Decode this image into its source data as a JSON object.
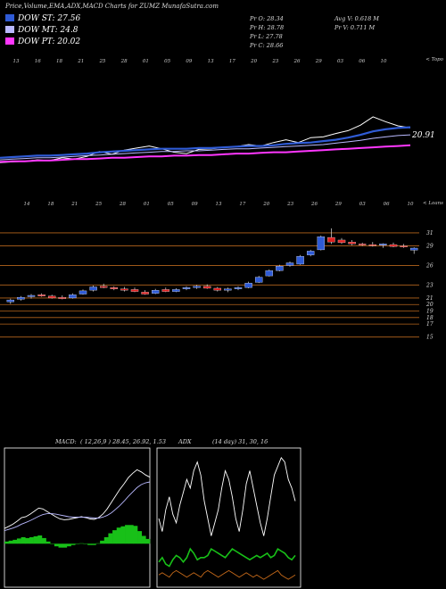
{
  "header": {
    "title": "Price,Volume,EMA,ADX,MACD Charts for ZUMZ MunafaSutra.com"
  },
  "legend": [
    {
      "label": "DOW ST: 27.56",
      "color": "#2f5bd6"
    },
    {
      "label": "DOW MT: 24.8",
      "color": "#b9b9ff"
    },
    {
      "label": "DOW PT: 20.02",
      "color": "#ff37ff"
    }
  ],
  "stats": {
    "pr_o": "Pr   O: 28.34",
    "pr_h": "Pr   H: 28.78",
    "pr_l": "Pr   L: 27.78",
    "pr_c": "Pr   C: 28.66",
    "avg_v": "Avg V: 0.618 M",
    "pr_v": "Pr   V: 0.711 M"
  },
  "colors": {
    "bull": "#2f5bd6",
    "bear": "#e02020",
    "grid": "#b5651d",
    "macd_fill": "#18c018",
    "adx_green": "#18c018",
    "adx_orange": "#c66a1a"
  },
  "chart_data": [
    {
      "type": "line",
      "name": "ema-panel",
      "date_labels_top": [
        "13",
        "16",
        "18",
        "21",
        "25",
        "28",
        "01",
        "05",
        "09",
        "13",
        "17",
        "20",
        "23",
        "26",
        "29",
        "03",
        "06",
        "10"
      ],
      "annotation": "20.91",
      "corner_label": "< Topo",
      "series": [
        {
          "color": "#ffffff",
          "values": [
            18.0,
            18.1,
            18.2,
            18.4,
            18.3,
            18.7,
            18.5,
            18.9,
            19.6,
            19.2,
            19.8,
            20.1,
            20.4,
            20.0,
            19.5,
            19.3,
            19.9,
            20.0,
            20.2,
            20.3,
            20.6,
            20.4,
            20.9,
            21.3,
            20.9,
            21.6,
            21.7,
            22.2,
            22.6,
            23.4,
            24.6,
            23.9,
            23.3,
            23.0
          ]
        },
        {
          "color": "#2f5bd6",
          "values": [
            18.7,
            18.8,
            18.9,
            19.0,
            19.0,
            19.1,
            19.2,
            19.3,
            19.5,
            19.6,
            19.7,
            19.8,
            19.9,
            20.0,
            20.0,
            20.0,
            20.1,
            20.1,
            20.2,
            20.3,
            20.4,
            20.4,
            20.5,
            20.7,
            20.8,
            20.9,
            21.1,
            21.3,
            21.6,
            22.0,
            22.5,
            22.8,
            23.0,
            23.1
          ]
        },
        {
          "color": "#b9b9ff",
          "values": [
            18.4,
            18.5,
            18.6,
            18.7,
            18.7,
            18.8,
            18.9,
            19.0,
            19.1,
            19.2,
            19.3,
            19.4,
            19.5,
            19.6,
            19.6,
            19.7,
            19.7,
            19.8,
            19.9,
            20.0,
            20.0,
            20.1,
            20.2,
            20.3,
            20.4,
            20.5,
            20.6,
            20.8,
            21.0,
            21.2,
            21.5,
            21.7,
            21.9,
            22.0
          ]
        },
        {
          "color": "#ff37ff",
          "values": [
            18.1,
            18.2,
            18.2,
            18.3,
            18.3,
            18.4,
            18.5,
            18.5,
            18.6,
            18.7,
            18.7,
            18.8,
            18.9,
            18.9,
            19.0,
            19.0,
            19.1,
            19.1,
            19.2,
            19.3,
            19.3,
            19.4,
            19.5,
            19.5,
            19.6,
            19.7,
            19.8,
            19.9,
            20.0,
            20.1,
            20.2,
            20.3,
            20.4,
            20.5
          ]
        }
      ],
      "ylim": [
        17,
        26
      ]
    },
    {
      "type": "candlestick",
      "name": "price-panel",
      "date_labels": [
        "14",
        "18",
        "21",
        "25",
        "28",
        "01",
        "05",
        "09",
        "13",
        "17",
        "20",
        "23",
        "26",
        "29",
        "03",
        "06",
        "10"
      ],
      "corner_label": "< Loans",
      "price_levels": [
        31,
        29,
        26,
        23,
        21,
        20,
        19,
        18,
        17,
        15
      ],
      "ylim": [
        14,
        32.5
      ],
      "candles": [
        {
          "o": 20.4,
          "h": 20.9,
          "l": 20.1,
          "c": 20.7
        },
        {
          "o": 20.8,
          "h": 21.3,
          "l": 20.6,
          "c": 21.1
        },
        {
          "o": 21.2,
          "h": 21.6,
          "l": 20.9,
          "c": 21.4
        },
        {
          "o": 21.5,
          "h": 21.7,
          "l": 21.2,
          "c": 21.3
        },
        {
          "o": 21.3,
          "h": 21.5,
          "l": 20.9,
          "c": 21.0
        },
        {
          "o": 21.1,
          "h": 21.4,
          "l": 20.8,
          "c": 20.9
        },
        {
          "o": 21.0,
          "h": 21.7,
          "l": 20.9,
          "c": 21.5
        },
        {
          "o": 21.6,
          "h": 22.3,
          "l": 21.5,
          "c": 22.1
        },
        {
          "o": 22.2,
          "h": 22.9,
          "l": 22.0,
          "c": 22.7
        },
        {
          "o": 22.8,
          "h": 23.2,
          "l": 22.5,
          "c": 22.6
        },
        {
          "o": 22.6,
          "h": 22.8,
          "l": 22.2,
          "c": 22.4
        },
        {
          "o": 22.4,
          "h": 22.7,
          "l": 22.0,
          "c": 22.2
        },
        {
          "o": 22.3,
          "h": 22.6,
          "l": 21.9,
          "c": 22.0
        },
        {
          "o": 21.9,
          "h": 22.2,
          "l": 21.5,
          "c": 21.6
        },
        {
          "o": 21.7,
          "h": 22.4,
          "l": 21.6,
          "c": 22.2
        },
        {
          "o": 22.3,
          "h": 22.6,
          "l": 21.9,
          "c": 22.0
        },
        {
          "o": 22.0,
          "h": 22.5,
          "l": 21.9,
          "c": 22.3
        },
        {
          "o": 22.4,
          "h": 22.8,
          "l": 22.2,
          "c": 22.6
        },
        {
          "o": 22.6,
          "h": 23.0,
          "l": 22.4,
          "c": 22.8
        },
        {
          "o": 22.8,
          "h": 23.1,
          "l": 22.4,
          "c": 22.5
        },
        {
          "o": 22.5,
          "h": 22.7,
          "l": 22.0,
          "c": 22.2
        },
        {
          "o": 22.2,
          "h": 22.6,
          "l": 21.9,
          "c": 22.4
        },
        {
          "o": 22.4,
          "h": 22.8,
          "l": 22.2,
          "c": 22.6
        },
        {
          "o": 22.6,
          "h": 23.5,
          "l": 22.5,
          "c": 23.3
        },
        {
          "o": 23.4,
          "h": 24.4,
          "l": 23.3,
          "c": 24.2
        },
        {
          "o": 24.4,
          "h": 25.4,
          "l": 24.3,
          "c": 25.2
        },
        {
          "o": 25.2,
          "h": 26.1,
          "l": 25.1,
          "c": 25.9
        },
        {
          "o": 26.0,
          "h": 26.6,
          "l": 25.8,
          "c": 26.4
        },
        {
          "o": 26.2,
          "h": 27.6,
          "l": 26.1,
          "c": 27.4
        },
        {
          "o": 27.6,
          "h": 28.4,
          "l": 27.4,
          "c": 28.2
        },
        {
          "o": 28.4,
          "h": 30.6,
          "l": 28.3,
          "c": 30.4
        },
        {
          "o": 30.3,
          "h": 31.7,
          "l": 29.3,
          "c": 29.6
        },
        {
          "o": 29.9,
          "h": 30.2,
          "l": 29.3,
          "c": 29.5
        },
        {
          "o": 29.6,
          "h": 29.9,
          "l": 29.1,
          "c": 29.3
        },
        {
          "o": 29.3,
          "h": 29.5,
          "l": 29.0,
          "c": 29.2
        },
        {
          "o": 29.2,
          "h": 29.6,
          "l": 28.9,
          "c": 29.1
        },
        {
          "o": 29.1,
          "h": 29.4,
          "l": 28.7,
          "c": 29.3
        },
        {
          "o": 29.2,
          "h": 29.5,
          "l": 28.8,
          "c": 28.9
        },
        {
          "o": 29.0,
          "h": 29.3,
          "l": 28.7,
          "c": 28.9
        },
        {
          "o": 28.34,
          "h": 28.78,
          "l": 27.78,
          "c": 28.66
        }
      ]
    },
    {
      "type": "area",
      "name": "macd-panel",
      "label": "MACD:",
      "params": "( 12,26,9 ) 28.45, 26.92, 1.53",
      "ylim": [
        -1,
        2.2
      ],
      "series": [
        {
          "name": "macd",
          "color": "#ffffff",
          "values": [
            0.35,
            0.4,
            0.45,
            0.52,
            0.6,
            0.62,
            0.68,
            0.75,
            0.82,
            0.8,
            0.74,
            0.68,
            0.62,
            0.57,
            0.55,
            0.56,
            0.58,
            0.6,
            0.62,
            0.6,
            0.57,
            0.56,
            0.6,
            0.68,
            0.8,
            0.95,
            1.1,
            1.25,
            1.38,
            1.52,
            1.62,
            1.7,
            1.65,
            1.58,
            1.53
          ]
        },
        {
          "name": "signal",
          "color": "#b9b9ff",
          "values": [
            0.3,
            0.33,
            0.36,
            0.4,
            0.45,
            0.49,
            0.53,
            0.58,
            0.63,
            0.67,
            0.69,
            0.69,
            0.68,
            0.66,
            0.64,
            0.62,
            0.61,
            0.61,
            0.61,
            0.61,
            0.6,
            0.59,
            0.59,
            0.61,
            0.65,
            0.71,
            0.79,
            0.88,
            0.98,
            1.09,
            1.19,
            1.29,
            1.36,
            1.4,
            1.42
          ]
        },
        {
          "name": "histogram",
          "color": "#18c018",
          "values": [
            0.05,
            0.07,
            0.09,
            0.12,
            0.15,
            0.13,
            0.15,
            0.17,
            0.19,
            0.13,
            0.05,
            -0.01,
            -0.06,
            -0.09,
            -0.09,
            -0.06,
            -0.03,
            -0.01,
            0.01,
            -0.01,
            -0.03,
            -0.03,
            0.01,
            0.07,
            0.15,
            0.24,
            0.31,
            0.37,
            0.4,
            0.43,
            0.43,
            0.41,
            0.29,
            0.18,
            0.11
          ]
        }
      ]
    },
    {
      "type": "line",
      "name": "adx-panel",
      "label": "ADX",
      "params": "(14 day) 31, 30, 16",
      "ylim": [
        0,
        60
      ],
      "series": [
        {
          "name": "dx",
          "color": "#ffffff",
          "values": [
            30,
            24,
            34,
            40,
            32,
            28,
            36,
            42,
            48,
            44,
            52,
            56,
            50,
            38,
            30,
            22,
            28,
            34,
            44,
            52,
            48,
            40,
            30,
            24,
            34,
            46,
            52,
            44,
            36,
            28,
            22,
            30,
            40,
            50,
            54,
            58,
            56,
            48,
            44,
            38
          ]
        },
        {
          "name": "plus-di",
          "color": "#18c018",
          "values": [
            10,
            12,
            9,
            8,
            11,
            13,
            12,
            10,
            12,
            16,
            14,
            11,
            12,
            12,
            13,
            16,
            15,
            14,
            13,
            12,
            14,
            16,
            15,
            14,
            13,
            12,
            11,
            12,
            13,
            12,
            13,
            14,
            12,
            13,
            16,
            15,
            14,
            12,
            11,
            13
          ]
        },
        {
          "name": "minus-di",
          "color": "#c66a1a",
          "values": [
            4,
            5,
            4,
            3,
            5,
            6,
            5,
            4,
            3,
            4,
            5,
            4,
            3,
            5,
            6,
            5,
            4,
            3,
            4,
            5,
            6,
            5,
            4,
            3,
            4,
            5,
            4,
            3,
            4,
            3,
            2,
            3,
            4,
            5,
            6,
            4,
            3,
            2,
            3,
            4
          ]
        }
      ]
    }
  ]
}
